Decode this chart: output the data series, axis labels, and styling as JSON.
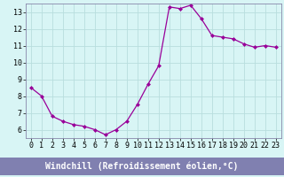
{
  "x": [
    0,
    1,
    2,
    3,
    4,
    5,
    6,
    7,
    8,
    9,
    10,
    11,
    12,
    13,
    14,
    15,
    16,
    17,
    18,
    19,
    20,
    21,
    22,
    23
  ],
  "y": [
    8.5,
    8.0,
    6.8,
    6.5,
    6.3,
    6.2,
    6.0,
    5.7,
    6.0,
    6.5,
    7.5,
    8.7,
    9.8,
    13.3,
    13.2,
    13.4,
    12.6,
    11.6,
    11.5,
    11.4,
    11.1,
    10.9,
    11.0,
    10.9
  ],
  "line_color": "#990099",
  "marker": "D",
  "marker_size": 2,
  "bg_color": "#d8f5f5",
  "grid_color": "#b8dede",
  "xlabel": "Windchill (Refroidissement éolien,°C)",
  "xlabel_color": "white",
  "xlabel_bg": "#8080b0",
  "ylim": [
    5.5,
    13.5
  ],
  "xlim": [
    -0.5,
    23.5
  ],
  "yticks": [
    6,
    7,
    8,
    9,
    10,
    11,
    12,
    13
  ],
  "xticks": [
    0,
    1,
    2,
    3,
    4,
    5,
    6,
    7,
    8,
    9,
    10,
    11,
    12,
    13,
    14,
    15,
    16,
    17,
    18,
    19,
    20,
    21,
    22,
    23
  ],
  "tick_label_fontsize": 6,
  "xlabel_fontsize": 7,
  "spine_color": "#8888aa"
}
